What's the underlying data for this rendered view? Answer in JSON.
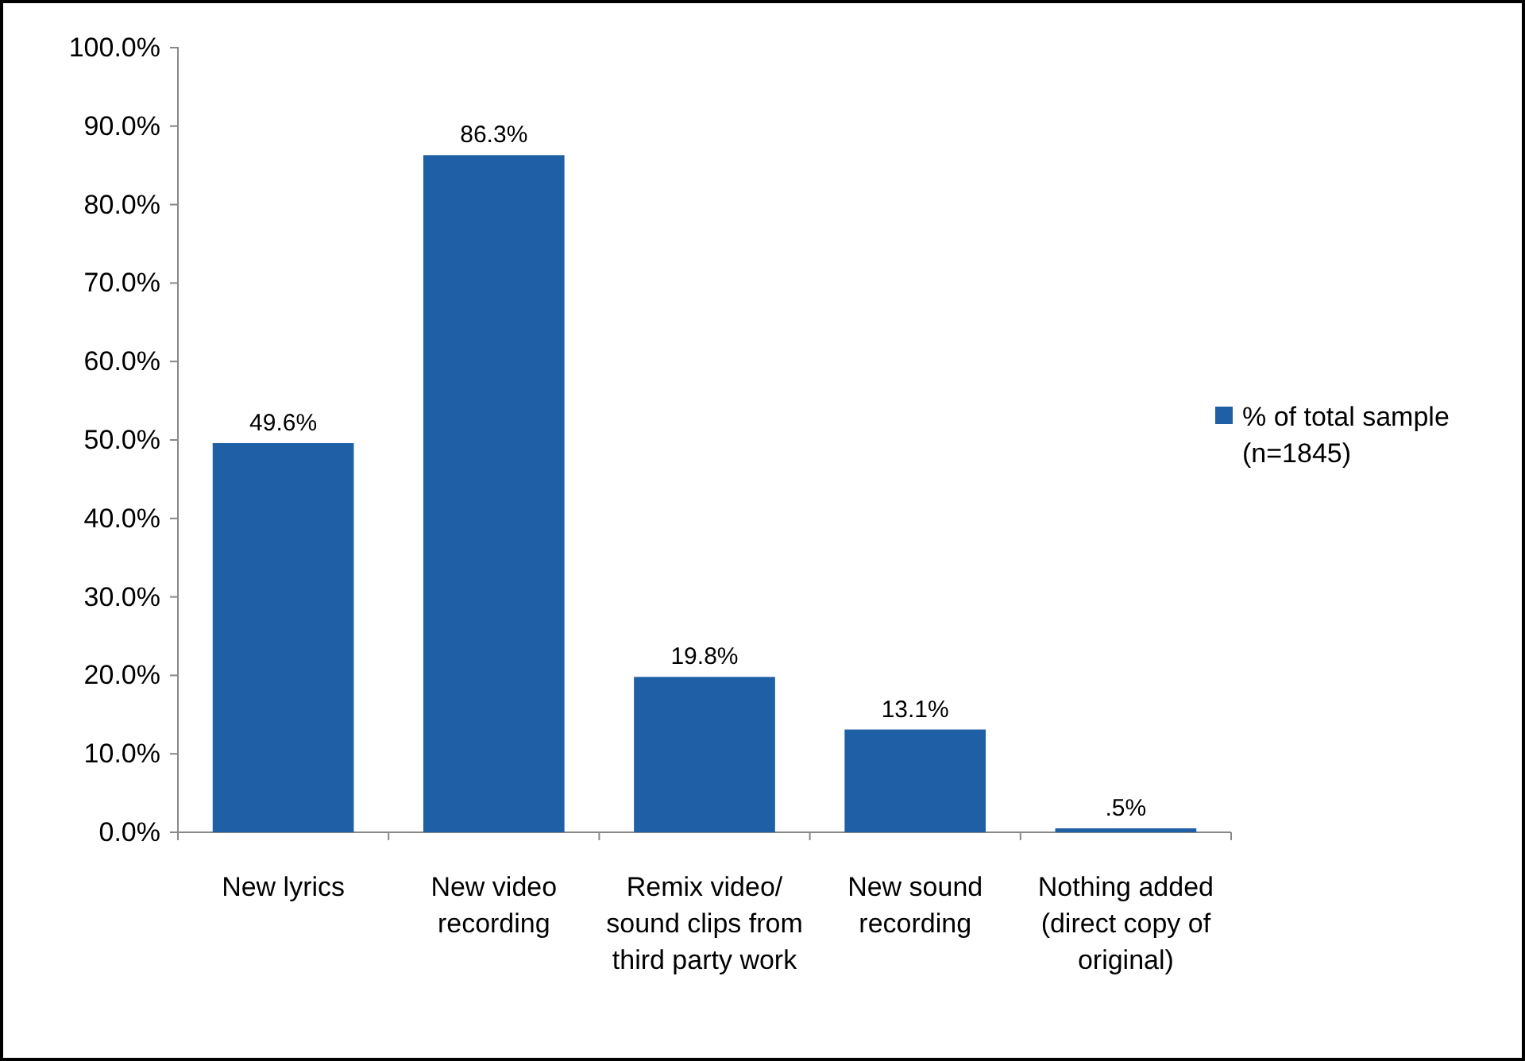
{
  "chart_data": {
    "type": "bar",
    "categories": [
      "New lyrics",
      "New video recording",
      "Remix video/ sound clips from  third party work",
      "New sound recording",
      "Nothing added (direct copy of original)"
    ],
    "series": [
      {
        "name": "% of total sample (n=1845)",
        "color": "#1f5fa5",
        "values": [
          49.6,
          86.3,
          19.8,
          13.1,
          0.5
        ],
        "value_labels": [
          "49.6%",
          "86.3%",
          "19.8%",
          "13.1%",
          ".5%"
        ]
      }
    ],
    "ylim": [
      0,
      100
    ],
    "yticks": [
      {
        "value": 0,
        "label": "0.0%"
      },
      {
        "value": 10,
        "label": "10.0%"
      },
      {
        "value": 20,
        "label": "20.0%"
      },
      {
        "value": 30,
        "label": "30.0%"
      },
      {
        "value": 40,
        "label": "40.0%"
      },
      {
        "value": 50,
        "label": "50.0%"
      },
      {
        "value": 60,
        "label": "60.0%"
      },
      {
        "value": 70,
        "label": "70.0%"
      },
      {
        "value": 80,
        "label": "80.0%"
      },
      {
        "value": 90,
        "label": "90.0%"
      },
      {
        "value": 100,
        "label": "100.0%"
      }
    ],
    "grid": false,
    "legend": "right"
  }
}
